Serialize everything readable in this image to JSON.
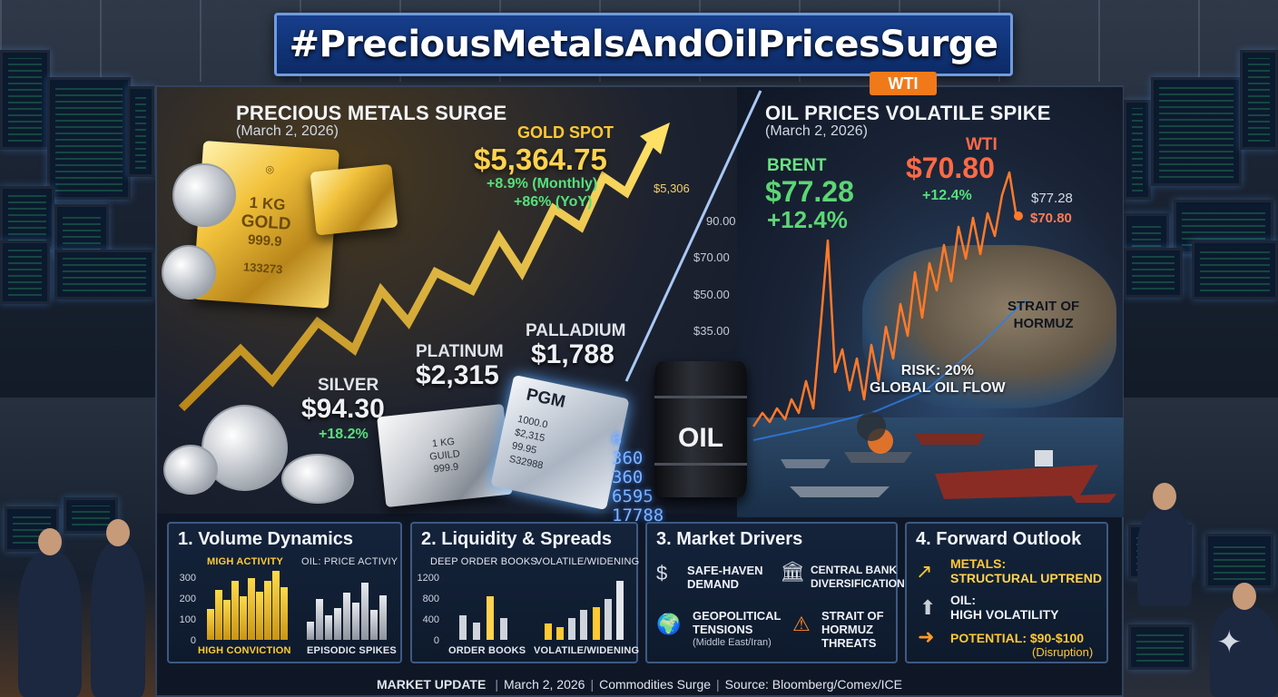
{
  "banner": {
    "hashtag": "#PreciousMetalsAndOilPricesSurge"
  },
  "metals": {
    "title": "PRECIOUS METALS SURGE",
    "date": "(March 2, 2026)",
    "gold": {
      "label": "GOLD SPOT",
      "price": "$5,364.75",
      "monthly": "+8.9% (Monthly)",
      "yoy": "+86% (YoY)",
      "chart_tag": "$5,306"
    },
    "gold_bar": {
      "line1": "1 KG",
      "line2": "GOLD",
      "line3": "999.9",
      "line4": "133273"
    },
    "silver": {
      "label": "SILVER",
      "price": "$94.30",
      "change": "+18.2%"
    },
    "platinum": {
      "label": "PLATINUM",
      "price": "$2,315"
    },
    "palladium": {
      "label": "PALLADIUM",
      "price": "$1,788"
    },
    "silver_bar": {
      "line1": "1 KG",
      "line2": "GUILD",
      "line3": "999.9"
    },
    "pgm_bar": {
      "label": "PGM",
      "line1": "1000.0",
      "line2": "$2,315",
      "line3": "99.95",
      "line4": "S32988"
    },
    "matrix_digits": [
      "6",
      "360",
      "360",
      "6595",
      "17788"
    ]
  },
  "oil": {
    "title": "OIL PRICES VOLATILE SPIKE",
    "date": "(March 2, 2026)",
    "brent": {
      "label": "BRENT",
      "price": "$77.28",
      "change": "+12.4%"
    },
    "wti": {
      "label": "WTI",
      "price": "$70.80",
      "change": "+12.4%",
      "badge": "WTI"
    },
    "side_values": {
      "brent": "$77.28",
      "wti": "$70.80"
    },
    "axis_ticks": [
      "90.00",
      "$70.00",
      "$50.00",
      "$35.00"
    ],
    "barrel_label": "OIL",
    "strait": {
      "line1": "STRAIT OF",
      "line2": "HORMUZ"
    },
    "risk": {
      "line1": "RISK: 20%",
      "line2": "GLOBAL OIL FLOW"
    }
  },
  "cards": {
    "volume": {
      "title": "1. Volume Dynamics",
      "left_top": "MIGH ACTIVITY",
      "right_top": "OIL: PRICE ACTIVIY",
      "left_bottom": "HIGH CONVICTION",
      "right_bottom": "EPISODIC SPIKES",
      "axis": [
        "300",
        "200",
        "100",
        "0"
      ],
      "gold_bars": [
        0.45,
        0.72,
        0.58,
        0.86,
        0.63,
        0.9,
        0.7,
        0.85,
        1.0,
        0.76
      ],
      "gray_bars": [
        0.3,
        0.66,
        0.4,
        0.52,
        0.77,
        0.6,
        0.92,
        0.48,
        0.72
      ]
    },
    "liquidity": {
      "title": "2. Liquidity & Spreads",
      "left_top": "DEEP ORDER BOOKS",
      "right_top": "VOLATILE/WIDENING",
      "left_bottom": "ORDER BOOKS",
      "right_bottom": "VOLATILE/WIDENING",
      "axis": [
        "1200",
        "800",
        "400",
        "0"
      ],
      "left_bars": [
        0.4,
        0.28,
        0.7,
        0.36
      ],
      "right_bars": [
        0.25,
        0.2,
        0.34,
        0.46,
        0.5,
        0.62,
        0.9
      ]
    },
    "drivers": {
      "title": "3. Market Drivers",
      "items": [
        {
          "icon": "$",
          "line1": "SAFE-HAVEN",
          "line2": "DEMAND"
        },
        {
          "icon": "🏛",
          "line1": "CENTRAL BANK",
          "line2": "DIVERSIFICATION"
        },
        {
          "icon": "🌍",
          "line1": "GEOPOLITICAL",
          "line2": "TENSIONS",
          "line3": "(Middle East/Iran)"
        },
        {
          "icon": "⚠",
          "line1": "STRAIT OF",
          "line2": "HORMUZ",
          "line3": "THREATS"
        }
      ]
    },
    "outlook": {
      "title": "4. Forward Outlook",
      "metals_label": "METALS:",
      "metals_value": "STRUCTURAL UPTREND",
      "oil_label": "OIL:",
      "oil_value": "HIGH VOLATILITY",
      "potential": "POTENTIAL: $90-$100",
      "potential_note": "(Disruption)"
    }
  },
  "footer": {
    "lead": "MARKET UPDATE",
    "date": "March 2, 2026",
    "topic": "Commodities Surge",
    "source": "Source: Bloomberg/Comex/ICE"
  },
  "colors": {
    "gold": "#ffd34d",
    "green": "#56e07a",
    "wti": "#ff6a45",
    "banner": "#173e8c"
  }
}
